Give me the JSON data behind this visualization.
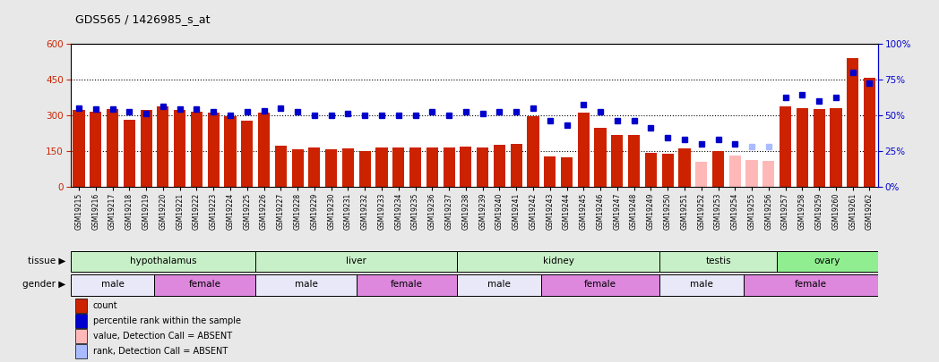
{
  "title": "GDS565 / 1426985_s_at",
  "samples": [
    "GSM19215",
    "GSM19216",
    "GSM19217",
    "GSM19218",
    "GSM19219",
    "GSM19220",
    "GSM19221",
    "GSM19222",
    "GSM19223",
    "GSM19224",
    "GSM19225",
    "GSM19226",
    "GSM19227",
    "GSM19228",
    "GSM19229",
    "GSM19230",
    "GSM19231",
    "GSM19232",
    "GSM19233",
    "GSM19234",
    "GSM19235",
    "GSM19236",
    "GSM19237",
    "GSM19238",
    "GSM19239",
    "GSM19240",
    "GSM19241",
    "GSM19242",
    "GSM19243",
    "GSM19244",
    "GSM19245",
    "GSM19246",
    "GSM19247",
    "GSM19248",
    "GSM19249",
    "GSM19250",
    "GSM19251",
    "GSM19252",
    "GSM19253",
    "GSM19254",
    "GSM19255",
    "GSM19256",
    "GSM19257",
    "GSM19258",
    "GSM19259",
    "GSM19260",
    "GSM19261",
    "GSM19262"
  ],
  "bar_values": [
    320,
    315,
    325,
    280,
    320,
    335,
    320,
    315,
    310,
    295,
    275,
    310,
    170,
    155,
    165,
    155,
    158,
    150,
    162,
    162,
    162,
    165,
    165,
    168,
    165,
    173,
    178,
    295,
    125,
    122,
    310,
    245,
    215,
    215,
    140,
    138,
    160,
    105,
    148,
    128,
    110,
    108,
    335,
    330,
    325,
    330,
    540,
    455
  ],
  "rank_values": [
    55,
    54,
    54,
    52,
    51,
    56,
    54,
    54,
    52,
    50,
    52,
    53,
    55,
    52,
    50,
    50,
    51,
    50,
    50,
    50,
    50,
    52,
    50,
    52,
    51,
    52,
    52,
    55,
    46,
    43,
    57,
    52,
    46,
    46,
    41,
    34,
    33,
    30,
    33,
    30,
    28,
    28,
    62,
    64,
    60,
    62,
    80,
    72
  ],
  "absent_bar": [
    false,
    false,
    false,
    false,
    false,
    false,
    false,
    false,
    false,
    false,
    false,
    false,
    false,
    false,
    false,
    false,
    false,
    false,
    false,
    false,
    false,
    false,
    false,
    false,
    false,
    false,
    false,
    false,
    false,
    false,
    false,
    false,
    false,
    false,
    false,
    false,
    false,
    true,
    false,
    true,
    true,
    true,
    false,
    false,
    false,
    false,
    false,
    false
  ],
  "absent_rank": [
    false,
    false,
    false,
    false,
    false,
    false,
    false,
    false,
    false,
    false,
    false,
    false,
    false,
    false,
    false,
    false,
    false,
    false,
    false,
    false,
    false,
    false,
    false,
    false,
    false,
    false,
    false,
    false,
    false,
    false,
    false,
    false,
    false,
    false,
    false,
    false,
    false,
    false,
    false,
    false,
    true,
    true,
    false,
    false,
    false,
    false,
    false,
    false
  ],
  "tissue_groups": [
    {
      "label": "hypothalamus",
      "start": 0,
      "end": 11,
      "color": "#c8f0c8"
    },
    {
      "label": "liver",
      "start": 11,
      "end": 23,
      "color": "#c8f0c8"
    },
    {
      "label": "kidney",
      "start": 23,
      "end": 35,
      "color": "#c8f0c8"
    },
    {
      "label": "testis",
      "start": 35,
      "end": 42,
      "color": "#c8f0c8"
    },
    {
      "label": "ovary",
      "start": 42,
      "end": 48,
      "color": "#90ee90"
    }
  ],
  "gender_groups": [
    {
      "label": "male",
      "start": 0,
      "end": 5,
      "color": "#e8e8f8"
    },
    {
      "label": "female",
      "start": 5,
      "end": 11,
      "color": "#dd88dd"
    },
    {
      "label": "male",
      "start": 11,
      "end": 17,
      "color": "#e8e8f8"
    },
    {
      "label": "female",
      "start": 17,
      "end": 23,
      "color": "#dd88dd"
    },
    {
      "label": "male",
      "start": 23,
      "end": 28,
      "color": "#e8e8f8"
    },
    {
      "label": "female",
      "start": 28,
      "end": 35,
      "color": "#dd88dd"
    },
    {
      "label": "male",
      "start": 35,
      "end": 40,
      "color": "#e8e8f8"
    },
    {
      "label": "female",
      "start": 40,
      "end": 48,
      "color": "#dd88dd"
    }
  ],
  "ylim": [
    0,
    600
  ],
  "y2lim": [
    0,
    100
  ],
  "yticks": [
    0,
    150,
    300,
    450,
    600
  ],
  "y2ticks": [
    0,
    25,
    50,
    75,
    100
  ],
  "bar_color": "#cc2200",
  "absent_bar_color": "#ffb8b8",
  "rank_color": "#0000cc",
  "absent_rank_color": "#aabbff",
  "bg_color": "#e8e8e8",
  "plot_bg": "#ffffff",
  "legend_items": [
    {
      "label": "count",
      "color": "#cc2200"
    },
    {
      "label": "percentile rank within the sample",
      "color": "#0000cc"
    },
    {
      "label": "value, Detection Call = ABSENT",
      "color": "#ffb8b8"
    },
    {
      "label": "rank, Detection Call = ABSENT",
      "color": "#aabbff"
    }
  ]
}
